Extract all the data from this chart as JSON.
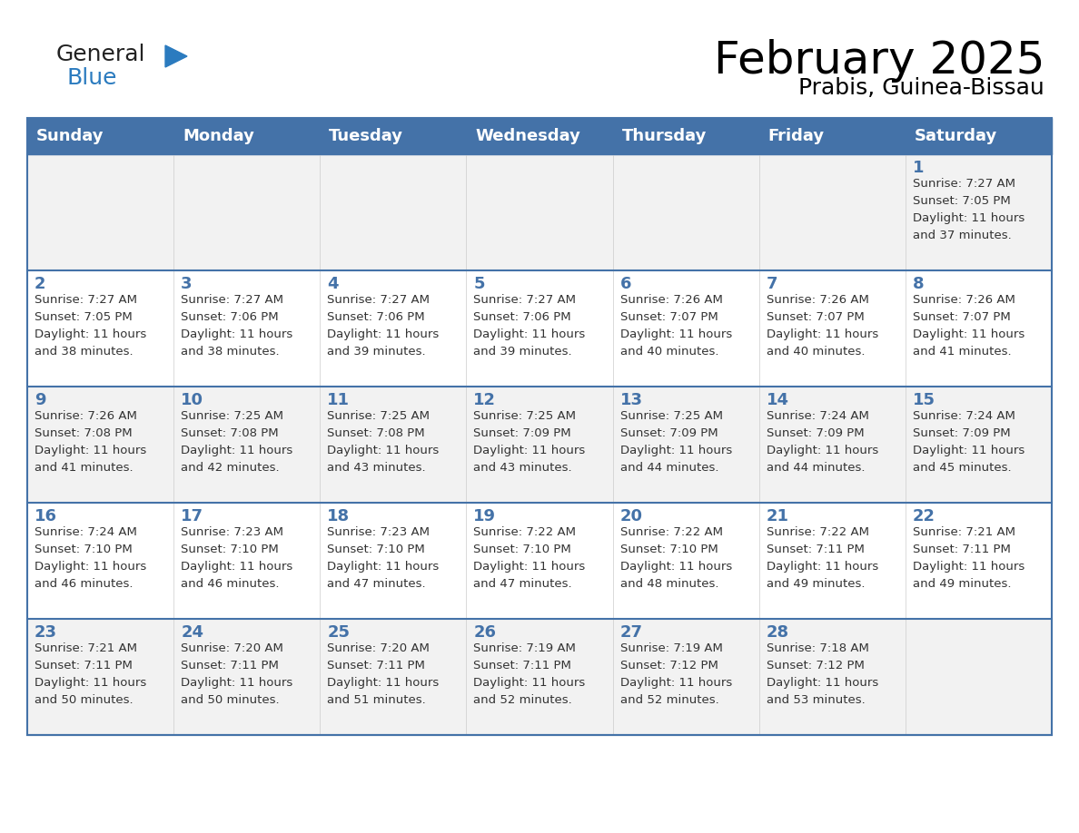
{
  "title": "February 2025",
  "subtitle": "Prabis, Guinea-Bissau",
  "header_bg": "#4472a8",
  "header_text_color": "#ffffff",
  "row_bg_odd": "#f2f2f2",
  "row_bg_even": "#ffffff",
  "border_color": "#4472a8",
  "text_color": "#333333",
  "days_of_week": [
    "Sunday",
    "Monday",
    "Tuesday",
    "Wednesday",
    "Thursday",
    "Friday",
    "Saturday"
  ],
  "weeks": [
    [
      {
        "day": null,
        "sunrise": null,
        "sunset": null,
        "daylight": null
      },
      {
        "day": null,
        "sunrise": null,
        "sunset": null,
        "daylight": null
      },
      {
        "day": null,
        "sunrise": null,
        "sunset": null,
        "daylight": null
      },
      {
        "day": null,
        "sunrise": null,
        "sunset": null,
        "daylight": null
      },
      {
        "day": null,
        "sunrise": null,
        "sunset": null,
        "daylight": null
      },
      {
        "day": null,
        "sunrise": null,
        "sunset": null,
        "daylight": null
      },
      {
        "day": 1,
        "sunrise": "7:27 AM",
        "sunset": "7:05 PM",
        "daylight": "11 hours\nand 37 minutes."
      }
    ],
    [
      {
        "day": 2,
        "sunrise": "7:27 AM",
        "sunset": "7:05 PM",
        "daylight": "11 hours\nand 38 minutes."
      },
      {
        "day": 3,
        "sunrise": "7:27 AM",
        "sunset": "7:06 PM",
        "daylight": "11 hours\nand 38 minutes."
      },
      {
        "day": 4,
        "sunrise": "7:27 AM",
        "sunset": "7:06 PM",
        "daylight": "11 hours\nand 39 minutes."
      },
      {
        "day": 5,
        "sunrise": "7:27 AM",
        "sunset": "7:06 PM",
        "daylight": "11 hours\nand 39 minutes."
      },
      {
        "day": 6,
        "sunrise": "7:26 AM",
        "sunset": "7:07 PM",
        "daylight": "11 hours\nand 40 minutes."
      },
      {
        "day": 7,
        "sunrise": "7:26 AM",
        "sunset": "7:07 PM",
        "daylight": "11 hours\nand 40 minutes."
      },
      {
        "day": 8,
        "sunrise": "7:26 AM",
        "sunset": "7:07 PM",
        "daylight": "11 hours\nand 41 minutes."
      }
    ],
    [
      {
        "day": 9,
        "sunrise": "7:26 AM",
        "sunset": "7:08 PM",
        "daylight": "11 hours\nand 41 minutes."
      },
      {
        "day": 10,
        "sunrise": "7:25 AM",
        "sunset": "7:08 PM",
        "daylight": "11 hours\nand 42 minutes."
      },
      {
        "day": 11,
        "sunrise": "7:25 AM",
        "sunset": "7:08 PM",
        "daylight": "11 hours\nand 43 minutes."
      },
      {
        "day": 12,
        "sunrise": "7:25 AM",
        "sunset": "7:09 PM",
        "daylight": "11 hours\nand 43 minutes."
      },
      {
        "day": 13,
        "sunrise": "7:25 AM",
        "sunset": "7:09 PM",
        "daylight": "11 hours\nand 44 minutes."
      },
      {
        "day": 14,
        "sunrise": "7:24 AM",
        "sunset": "7:09 PM",
        "daylight": "11 hours\nand 44 minutes."
      },
      {
        "day": 15,
        "sunrise": "7:24 AM",
        "sunset": "7:09 PM",
        "daylight": "11 hours\nand 45 minutes."
      }
    ],
    [
      {
        "day": 16,
        "sunrise": "7:24 AM",
        "sunset": "7:10 PM",
        "daylight": "11 hours\nand 46 minutes."
      },
      {
        "day": 17,
        "sunrise": "7:23 AM",
        "sunset": "7:10 PM",
        "daylight": "11 hours\nand 46 minutes."
      },
      {
        "day": 18,
        "sunrise": "7:23 AM",
        "sunset": "7:10 PM",
        "daylight": "11 hours\nand 47 minutes."
      },
      {
        "day": 19,
        "sunrise": "7:22 AM",
        "sunset": "7:10 PM",
        "daylight": "11 hours\nand 47 minutes."
      },
      {
        "day": 20,
        "sunrise": "7:22 AM",
        "sunset": "7:10 PM",
        "daylight": "11 hours\nand 48 minutes."
      },
      {
        "day": 21,
        "sunrise": "7:22 AM",
        "sunset": "7:11 PM",
        "daylight": "11 hours\nand 49 minutes."
      },
      {
        "day": 22,
        "sunrise": "7:21 AM",
        "sunset": "7:11 PM",
        "daylight": "11 hours\nand 49 minutes."
      }
    ],
    [
      {
        "day": 23,
        "sunrise": "7:21 AM",
        "sunset": "7:11 PM",
        "daylight": "11 hours\nand 50 minutes."
      },
      {
        "day": 24,
        "sunrise": "7:20 AM",
        "sunset": "7:11 PM",
        "daylight": "11 hours\nand 50 minutes."
      },
      {
        "day": 25,
        "sunrise": "7:20 AM",
        "sunset": "7:11 PM",
        "daylight": "11 hours\nand 51 minutes."
      },
      {
        "day": 26,
        "sunrise": "7:19 AM",
        "sunset": "7:11 PM",
        "daylight": "11 hours\nand 52 minutes."
      },
      {
        "day": 27,
        "sunrise": "7:19 AM",
        "sunset": "7:12 PM",
        "daylight": "11 hours\nand 52 minutes."
      },
      {
        "day": 28,
        "sunrise": "7:18 AM",
        "sunset": "7:12 PM",
        "daylight": "11 hours\nand 53 minutes."
      },
      {
        "day": null,
        "sunrise": null,
        "sunset": null,
        "daylight": null
      }
    ]
  ],
  "logo_general_color": "#222222",
  "logo_blue_color": "#2b7bbf",
  "logo_triangle_color": "#2b7bbf"
}
